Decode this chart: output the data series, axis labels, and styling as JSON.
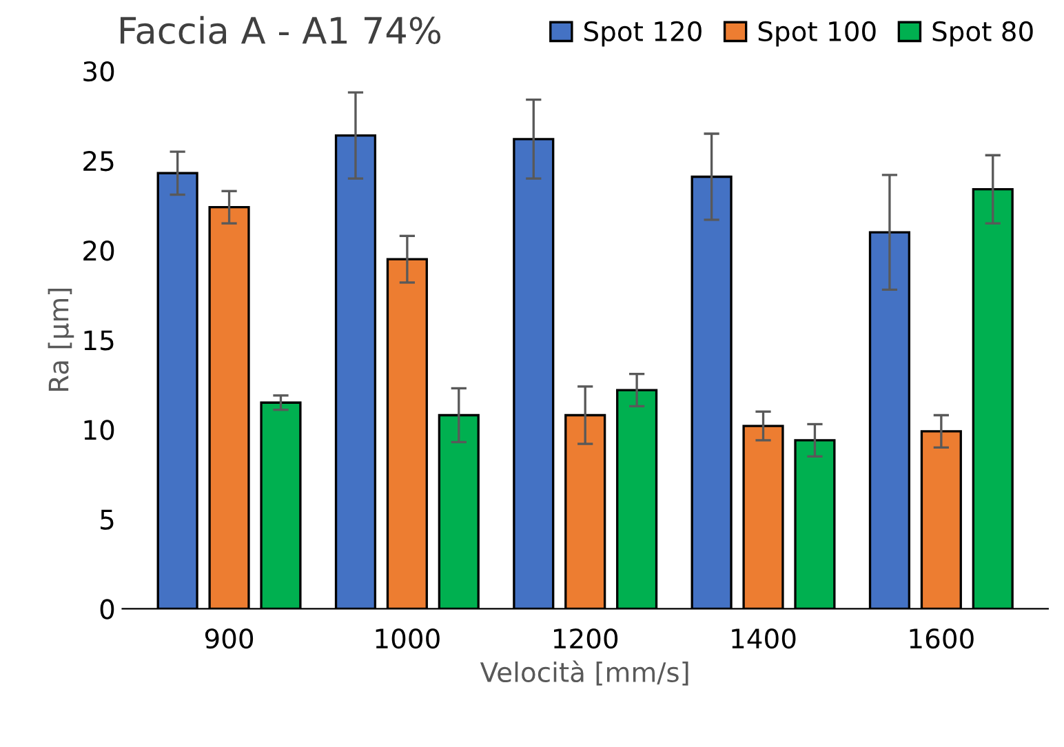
{
  "chart_data": {
    "type": "bar",
    "title": "Faccia A - A1 74%",
    "xlabel": "Velocità [mm/s]",
    "ylabel": "Ra [µm]",
    "categories": [
      "900",
      "1000",
      "1200",
      "1400",
      "1600"
    ],
    "series": [
      {
        "name": "Spot 120",
        "color": "#4472c4",
        "values": [
          24.3,
          26.4,
          26.2,
          24.1,
          21.0
        ],
        "errors": [
          1.2,
          2.4,
          2.2,
          2.4,
          3.2
        ]
      },
      {
        "name": "Spot 100",
        "color": "#ed7d31",
        "values": [
          22.4,
          19.5,
          10.8,
          10.2,
          9.9
        ],
        "errors": [
          0.9,
          1.3,
          1.6,
          0.8,
          0.9
        ]
      },
      {
        "name": "Spot 80",
        "color": "#00b050",
        "values": [
          11.5,
          10.8,
          12.2,
          9.4,
          23.4
        ],
        "errors": [
          0.4,
          1.5,
          0.9,
          0.9,
          1.9
        ]
      }
    ],
    "ylim": [
      0,
      30
    ],
    "yticks": [
      0,
      5,
      10,
      15,
      20,
      25,
      30
    ],
    "grid": false,
    "legend": "top"
  }
}
